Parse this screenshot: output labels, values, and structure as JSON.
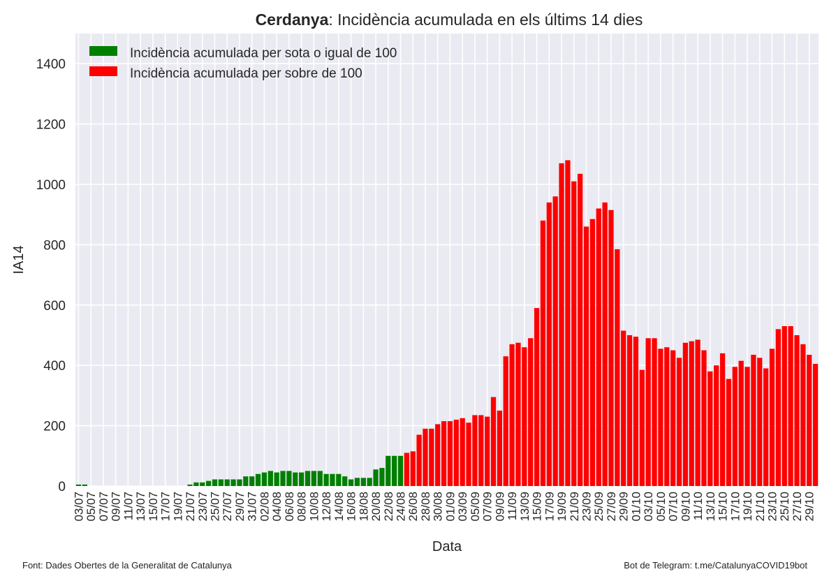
{
  "title": {
    "bold": "Cerdanya",
    "rest": ": Incidència acumulada en els últims 14 dies"
  },
  "source_left": "Font: Dades Obertes de la Generalitat de Catalunya",
  "source_right": "Bot de Telegram: t.me/CatalunyaCOVID19bot",
  "colors": {
    "below": "#008000",
    "above": "#ff0000",
    "plot_bg": "#eaeaf2",
    "grid": "#ffffff"
  },
  "chart_data": {
    "type": "bar",
    "xlabel": "Data",
    "ylabel": "IA14",
    "ylim": [
      0,
      1500
    ],
    "yticks": [
      0,
      200,
      400,
      600,
      800,
      1000,
      1200,
      1400
    ],
    "threshold": 100,
    "legend": [
      "Incidència acumulada per sota o igual de 100",
      "Incidència acumulada per sobre de 100"
    ],
    "legend_position": "top-left",
    "grid": true,
    "x_tick_labels": [
      "03/07",
      "05/07",
      "07/07",
      "09/07",
      "11/07",
      "13/07",
      "15/07",
      "17/07",
      "19/07",
      "21/07",
      "23/07",
      "25/07",
      "27/07",
      "29/07",
      "31/07",
      "02/08",
      "04/08",
      "06/08",
      "08/08",
      "10/08",
      "12/08",
      "14/08",
      "16/08",
      "18/08",
      "20/08",
      "22/08",
      "24/08",
      "26/08",
      "28/08",
      "30/08",
      "01/09",
      "03/09",
      "05/09",
      "07/09",
      "09/09",
      "11/09",
      "13/09",
      "15/09",
      "17/09",
      "19/09",
      "21/09",
      "23/09",
      "25/09",
      "27/09",
      "29/09",
      "01/10",
      "03/10",
      "05/10",
      "07/10",
      "09/10",
      "11/10",
      "13/10",
      "15/10",
      "17/10",
      "19/10",
      "21/10",
      "23/10",
      "25/10",
      "27/10",
      "29/10"
    ],
    "start_date": "03/07",
    "values": [
      5,
      5,
      0,
      0,
      0,
      0,
      0,
      0,
      0,
      0,
      0,
      0,
      0,
      0,
      0,
      0,
      0,
      0,
      5,
      12,
      12,
      17,
      22,
      22,
      22,
      22,
      22,
      32,
      32,
      40,
      45,
      50,
      45,
      50,
      50,
      45,
      45,
      50,
      50,
      50,
      40,
      40,
      40,
      32,
      22,
      27,
      27,
      27,
      55,
      60,
      100,
      100,
      100,
      110,
      115,
      170,
      190,
      190,
      205,
      215,
      215,
      220,
      225,
      210,
      235,
      235,
      230,
      295,
      250,
      430,
      470,
      475,
      460,
      490,
      590,
      880,
      940,
      960,
      1070,
      1080,
      1010,
      1035,
      860,
      885,
      920,
      940,
      915,
      785,
      515,
      500,
      495,
      385,
      490,
      490,
      455,
      460,
      450,
      425,
      475,
      480,
      485,
      450,
      380,
      400,
      440,
      355,
      395,
      415,
      395,
      435,
      425,
      390,
      455,
      520,
      530,
      530,
      500,
      470,
      435,
      405
    ]
  }
}
